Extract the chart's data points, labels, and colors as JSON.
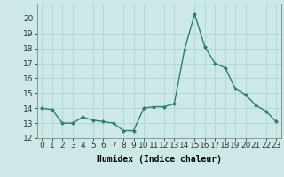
{
  "x": [
    0,
    1,
    2,
    3,
    4,
    5,
    6,
    7,
    8,
    9,
    10,
    11,
    12,
    13,
    14,
    15,
    16,
    17,
    18,
    19,
    20,
    21,
    22,
    23
  ],
  "y": [
    14.0,
    13.9,
    13.0,
    13.0,
    13.4,
    13.2,
    13.1,
    13.0,
    12.5,
    12.5,
    14.0,
    14.1,
    14.1,
    14.3,
    17.9,
    20.3,
    18.1,
    17.0,
    16.7,
    15.3,
    14.9,
    14.2,
    13.8,
    13.1
  ],
  "line_color": "#2e7d6e",
  "marker": "D",
  "markersize": 2.0,
  "linewidth": 1.0,
  "bg_color": "#cce9e8",
  "grid_color": "#afd4d3",
  "xlabel": "Humidex (Indice chaleur)",
  "xlabel_fontsize": 7,
  "tick_fontsize": 6.5,
  "ylim": [
    12,
    21
  ],
  "yticks": [
    12,
    13,
    14,
    15,
    16,
    17,
    18,
    19,
    20
  ],
  "xticks": [
    0,
    1,
    2,
    3,
    4,
    5,
    6,
    7,
    8,
    9,
    10,
    11,
    12,
    13,
    14,
    15,
    16,
    17,
    18,
    19,
    20,
    21,
    22,
    23
  ]
}
